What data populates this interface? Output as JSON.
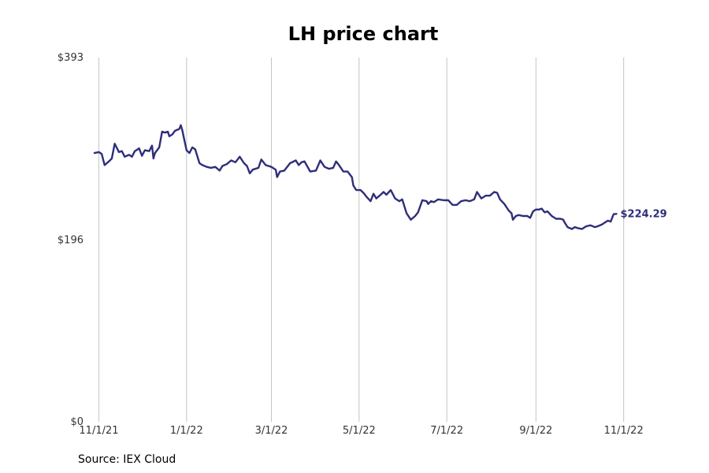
{
  "chart_data": {
    "type": "line",
    "title": "LH price chart",
    "source": "Source: IEX Cloud",
    "xlabel": "",
    "ylabel": "",
    "ylim": [
      0,
      393
    ],
    "xlim": [
      "2021-10-29",
      "2022-11-22"
    ],
    "y_ticks": [
      {
        "value": 0,
        "label": "$0"
      },
      {
        "value": 196,
        "label": "$196"
      },
      {
        "value": 393,
        "label": "$393"
      }
    ],
    "x_ticks": [
      {
        "date": "2021-11-01",
        "label": "11/1/21"
      },
      {
        "date": "2022-01-01",
        "label": "1/1/22"
      },
      {
        "date": "2022-03-01",
        "label": "3/1/22"
      },
      {
        "date": "2022-05-01",
        "label": "5/1/22"
      },
      {
        "date": "2022-07-01",
        "label": "7/1/22"
      },
      {
        "date": "2022-09-01",
        "label": "9/1/22"
      },
      {
        "date": "2022-11-01",
        "label": "11/1/22"
      }
    ],
    "grid": "vertical at x ticks",
    "line_color": "#2e2e7a",
    "last_value_label": "$224.29",
    "series": [
      {
        "name": "LH",
        "points": [
          [
            "2021-10-29",
            290
          ],
          [
            "2021-11-01",
            291
          ],
          [
            "2021-11-03",
            289
          ],
          [
            "2021-11-05",
            277
          ],
          [
            "2021-11-08",
            281
          ],
          [
            "2021-11-10",
            284
          ],
          [
            "2021-11-12",
            300
          ],
          [
            "2021-11-15",
            291
          ],
          [
            "2021-11-17",
            292
          ],
          [
            "2021-11-19",
            286
          ],
          [
            "2021-11-22",
            288
          ],
          [
            "2021-11-24",
            286
          ],
          [
            "2021-11-26",
            292
          ],
          [
            "2021-11-29",
            295
          ],
          [
            "2021-12-01",
            287
          ],
          [
            "2021-12-03",
            293
          ],
          [
            "2021-12-06",
            292
          ],
          [
            "2021-12-08",
            298
          ],
          [
            "2021-12-09",
            284
          ],
          [
            "2021-12-10",
            290
          ],
          [
            "2021-12-13",
            296
          ],
          [
            "2021-12-15",
            313
          ],
          [
            "2021-12-17",
            312
          ],
          [
            "2021-12-19",
            313
          ],
          [
            "2021-12-20",
            308
          ],
          [
            "2021-12-22",
            310
          ],
          [
            "2021-12-24",
            314
          ],
          [
            "2021-12-27",
            316
          ],
          [
            "2021-12-28",
            320
          ],
          [
            "2021-12-29",
            315
          ],
          [
            "2021-12-31",
            300
          ],
          [
            "2022-01-01",
            293
          ],
          [
            "2022-01-03",
            290
          ],
          [
            "2022-01-05",
            296
          ],
          [
            "2022-01-07",
            294
          ],
          [
            "2022-01-10",
            279
          ],
          [
            "2022-01-12",
            277
          ],
          [
            "2022-01-15",
            275
          ],
          [
            "2022-01-18",
            274
          ],
          [
            "2022-01-21",
            275
          ],
          [
            "2022-01-24",
            271
          ],
          [
            "2022-01-26",
            276
          ],
          [
            "2022-01-29",
            278
          ],
          [
            "2022-02-01",
            282
          ],
          [
            "2022-02-04",
            280
          ],
          [
            "2022-02-07",
            286
          ],
          [
            "2022-02-10",
            279
          ],
          [
            "2022-02-12",
            276
          ],
          [
            "2022-02-14",
            268
          ],
          [
            "2022-02-16",
            272
          ],
          [
            "2022-02-20",
            274
          ],
          [
            "2022-02-22",
            283
          ],
          [
            "2022-02-25",
            277
          ],
          [
            "2022-03-01",
            275
          ],
          [
            "2022-03-04",
            272
          ],
          [
            "2022-03-05",
            264
          ],
          [
            "2022-03-07",
            270
          ],
          [
            "2022-03-10",
            271
          ],
          [
            "2022-03-14",
            279
          ],
          [
            "2022-03-18",
            282
          ],
          [
            "2022-03-20",
            277
          ],
          [
            "2022-03-22",
            280
          ],
          [
            "2022-03-24",
            281
          ],
          [
            "2022-03-28",
            270
          ],
          [
            "2022-04-01",
            271
          ],
          [
            "2022-04-04",
            282
          ],
          [
            "2022-04-07",
            275
          ],
          [
            "2022-04-10",
            273
          ],
          [
            "2022-04-13",
            274
          ],
          [
            "2022-04-15",
            281
          ],
          [
            "2022-04-17",
            277
          ],
          [
            "2022-04-20",
            270
          ],
          [
            "2022-04-23",
            270
          ],
          [
            "2022-04-26",
            264
          ],
          [
            "2022-04-27",
            255
          ],
          [
            "2022-04-29",
            250
          ],
          [
            "2022-05-02",
            250
          ],
          [
            "2022-05-04",
            247
          ],
          [
            "2022-05-06",
            243
          ],
          [
            "2022-05-09",
            238
          ],
          [
            "2022-05-11",
            246
          ],
          [
            "2022-05-13",
            241
          ],
          [
            "2022-05-16",
            245
          ],
          [
            "2022-05-18",
            248
          ],
          [
            "2022-05-20",
            245
          ],
          [
            "2022-05-23",
            250
          ],
          [
            "2022-05-26",
            241
          ],
          [
            "2022-05-29",
            238
          ],
          [
            "2022-05-31",
            240
          ],
          [
            "2022-06-03",
            225
          ],
          [
            "2022-06-06",
            218
          ],
          [
            "2022-06-09",
            222
          ],
          [
            "2022-06-11",
            226
          ],
          [
            "2022-06-14",
            239
          ],
          [
            "2022-06-17",
            238
          ],
          [
            "2022-06-18",
            235
          ],
          [
            "2022-06-20",
            238
          ],
          [
            "2022-06-22",
            237
          ],
          [
            "2022-06-25",
            240
          ],
          [
            "2022-06-29",
            239
          ],
          [
            "2022-07-02",
            239
          ],
          [
            "2022-07-05",
            234
          ],
          [
            "2022-07-08",
            234
          ],
          [
            "2022-07-11",
            238
          ],
          [
            "2022-07-14",
            239
          ],
          [
            "2022-07-17",
            238
          ],
          [
            "2022-07-20",
            240
          ],
          [
            "2022-07-22",
            248
          ],
          [
            "2022-07-25",
            241
          ],
          [
            "2022-07-28",
            244
          ],
          [
            "2022-07-31",
            244
          ],
          [
            "2022-08-03",
            248
          ],
          [
            "2022-08-05",
            247
          ],
          [
            "2022-08-07",
            240
          ],
          [
            "2022-08-10",
            235
          ],
          [
            "2022-08-13",
            228
          ],
          [
            "2022-08-15",
            225
          ],
          [
            "2022-08-16",
            218
          ],
          [
            "2022-08-18",
            222
          ],
          [
            "2022-08-20",
            223
          ],
          [
            "2022-08-23",
            222
          ],
          [
            "2022-08-26",
            222
          ],
          [
            "2022-08-28",
            220
          ],
          [
            "2022-08-30",
            227
          ],
          [
            "2022-09-01",
            229
          ],
          [
            "2022-09-03",
            229
          ],
          [
            "2022-09-05",
            230
          ],
          [
            "2022-09-07",
            226
          ],
          [
            "2022-09-09",
            227
          ],
          [
            "2022-09-12",
            222
          ],
          [
            "2022-09-15",
            219
          ],
          [
            "2022-09-18",
            219
          ],
          [
            "2022-09-20",
            218
          ],
          [
            "2022-09-21",
            215
          ],
          [
            "2022-09-23",
            210
          ],
          [
            "2022-09-26",
            208
          ],
          [
            "2022-09-28",
            210
          ],
          [
            "2022-09-30",
            209
          ],
          [
            "2022-10-03",
            208
          ],
          [
            "2022-10-06",
            211
          ],
          [
            "2022-10-09",
            212
          ],
          [
            "2022-10-12",
            210
          ],
          [
            "2022-10-14",
            211
          ],
          [
            "2022-10-17",
            213
          ],
          [
            "2022-10-19",
            215
          ],
          [
            "2022-10-21",
            217
          ],
          [
            "2022-10-23",
            216
          ],
          [
            "2022-10-25",
            224
          ],
          [
            "2022-10-27",
            224.29
          ]
        ]
      }
    ]
  }
}
